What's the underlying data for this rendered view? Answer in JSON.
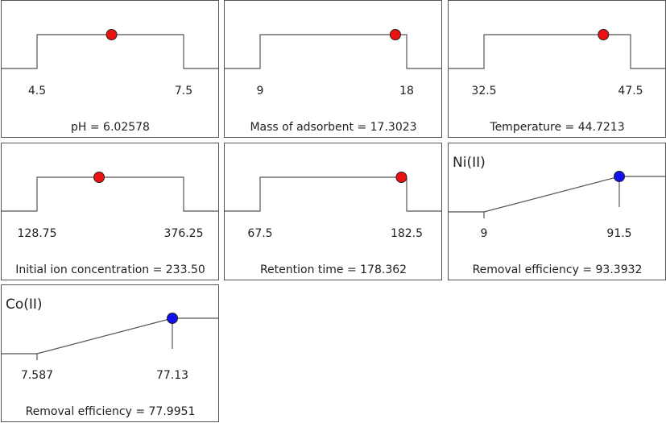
{
  "colors": {
    "factor_marker": "#ee1111",
    "response_marker": "#1111ee",
    "line": "#555555",
    "panel_border": "#555555"
  },
  "chart_data": [
    {
      "type": "line",
      "kind": "factor",
      "low_label": "4.5",
      "high_label": "7.5",
      "low": 4.5,
      "high": 7.5,
      "value": 6.02578,
      "caption": "pH = 6.02578"
    },
    {
      "type": "line",
      "kind": "factor",
      "low_label": "9",
      "high_label": "18",
      "low": 9,
      "high": 18,
      "value": 17.3023,
      "caption": "Mass of adsorbent  = 17.3023"
    },
    {
      "type": "line",
      "kind": "factor",
      "low_label": "32.5",
      "high_label": "47.5",
      "low": 32.5,
      "high": 47.5,
      "value": 44.7213,
      "caption": "Temperature = 44.7213"
    },
    {
      "type": "line",
      "kind": "factor",
      "low_label": "128.75",
      "high_label": "376.25",
      "low": 128.75,
      "high": 376.25,
      "value": 233.5,
      "caption": "Initial ion concentration  = 233.50"
    },
    {
      "type": "line",
      "kind": "factor",
      "low_label": "67.5",
      "high_label": "182.5",
      "low": 67.5,
      "high": 182.5,
      "value": 178.362,
      "caption": "Retention time  = 178.362"
    },
    {
      "type": "line",
      "kind": "response",
      "title": "Ni(II)",
      "low_label": "9",
      "high_label": "91.5",
      "low": 9,
      "high": 91.5,
      "value": 93.3932,
      "caption": "Removal efficiency  = 93.3932"
    },
    {
      "type": "line",
      "kind": "response",
      "title": "Co(II)",
      "low_label": "7.587",
      "high_label": "77.13",
      "low": 7.587,
      "high": 77.13,
      "value": 77.9951,
      "caption": "Removal efficiency  = 77.9951"
    }
  ]
}
